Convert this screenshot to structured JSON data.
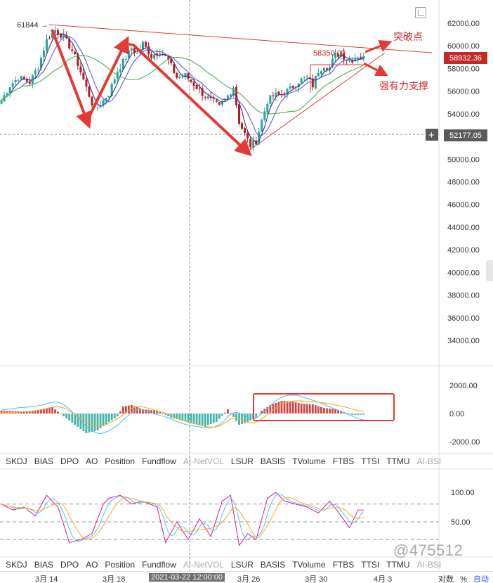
{
  "chart_data": [
    {
      "type": "candlestick",
      "ylim": [
        32500,
        63000
      ],
      "y_ticks": [
        "62000.00",
        "60000.00",
        "58000.00",
        "56000.00",
        "54000.00",
        "52000.00",
        "50000.00",
        "48000.00",
        "46000.00",
        "44000.00",
        "42000.00",
        "40000.00",
        "38000.00",
        "36000.00",
        "34000.00"
      ],
      "last_price": "58932.36",
      "crosshair_price": "52177.05",
      "high_label": "61844",
      "box_label": "58350.00",
      "annotations": {
        "breakout": "突破点",
        "support": "强有力支撑"
      },
      "colors": {
        "up": "#26a69a",
        "down": "#b71c1c",
        "ma_fast": "#3a2e8c",
        "ma_mid": "#5b5fd6",
        "ma_slow": "#4caf50",
        "trend": "#e53935"
      }
    },
    {
      "type": "histogram",
      "ylim": [
        -2400,
        2400
      ],
      "y_ticks": [
        "2000.00",
        "0.00",
        "-2000.00"
      ]
    },
    {
      "type": "line",
      "y_ticks": [
        "100.00",
        "50.00"
      ]
    }
  ],
  "indicator_tabs": [
    "SKDJ",
    "BIAS",
    "DPO",
    "AO",
    "Position",
    "Fundflow",
    "AI-NetVOL",
    "LSUR",
    "BASIS",
    "TVolume",
    "FTBS",
    "TTSI",
    "TTMU",
    "AI-BSI"
  ],
  "x_labels": [
    "3月 14",
    "3月 18",
    "2021-03-22 12:00:00",
    "3月 26",
    "3月 30",
    "4月 3"
  ],
  "footer": {
    "log": "对数",
    "percent": "%",
    "auto": "自动"
  },
  "watermark": "@475512",
  "add_icon": "plus-icon",
  "expand_icon": "expand-icon"
}
